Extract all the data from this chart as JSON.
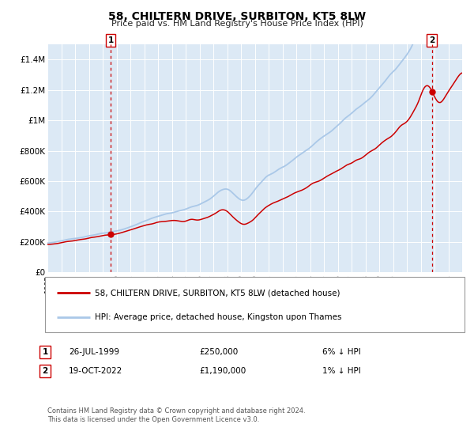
{
  "title": "58, CHILTERN DRIVE, SURBITON, KT5 8LW",
  "subtitle": "Price paid vs. HM Land Registry's House Price Index (HPI)",
  "legend_line1": "58, CHILTERN DRIVE, SURBITON, KT5 8LW (detached house)",
  "legend_line2": "HPI: Average price, detached house, Kingston upon Thames",
  "annotation1_date": "26-JUL-1999",
  "annotation1_price": "£250,000",
  "annotation1_hpi": "6% ↓ HPI",
  "annotation2_date": "19-OCT-2022",
  "annotation2_price": "£1,190,000",
  "annotation2_hpi": "1% ↓ HPI",
  "footnote": "Contains HM Land Registry data © Crown copyright and database right 2024.\nThis data is licensed under the Open Government Licence v3.0.",
  "hpi_color": "#aac8e8",
  "price_color": "#cc0000",
  "marker_color": "#cc0000",
  "bg_color": "#dce9f5",
  "grid_color": "#ffffff",
  "vline_color": "#cc0000",
  "ylim": [
    0,
    1500000
  ],
  "yticks": [
    0,
    200000,
    400000,
    600000,
    800000,
    1000000,
    1200000,
    1400000
  ],
  "ytick_labels": [
    "£0",
    "£200K",
    "£400K",
    "£600K",
    "£800K",
    "£1M",
    "£1.2M",
    "£1.4M"
  ],
  "sale1_x": 1999.57,
  "sale1_y": 250000,
  "sale2_x": 2022.8,
  "sale2_y": 1190000,
  "xmin": 1995,
  "xmax": 2025
}
